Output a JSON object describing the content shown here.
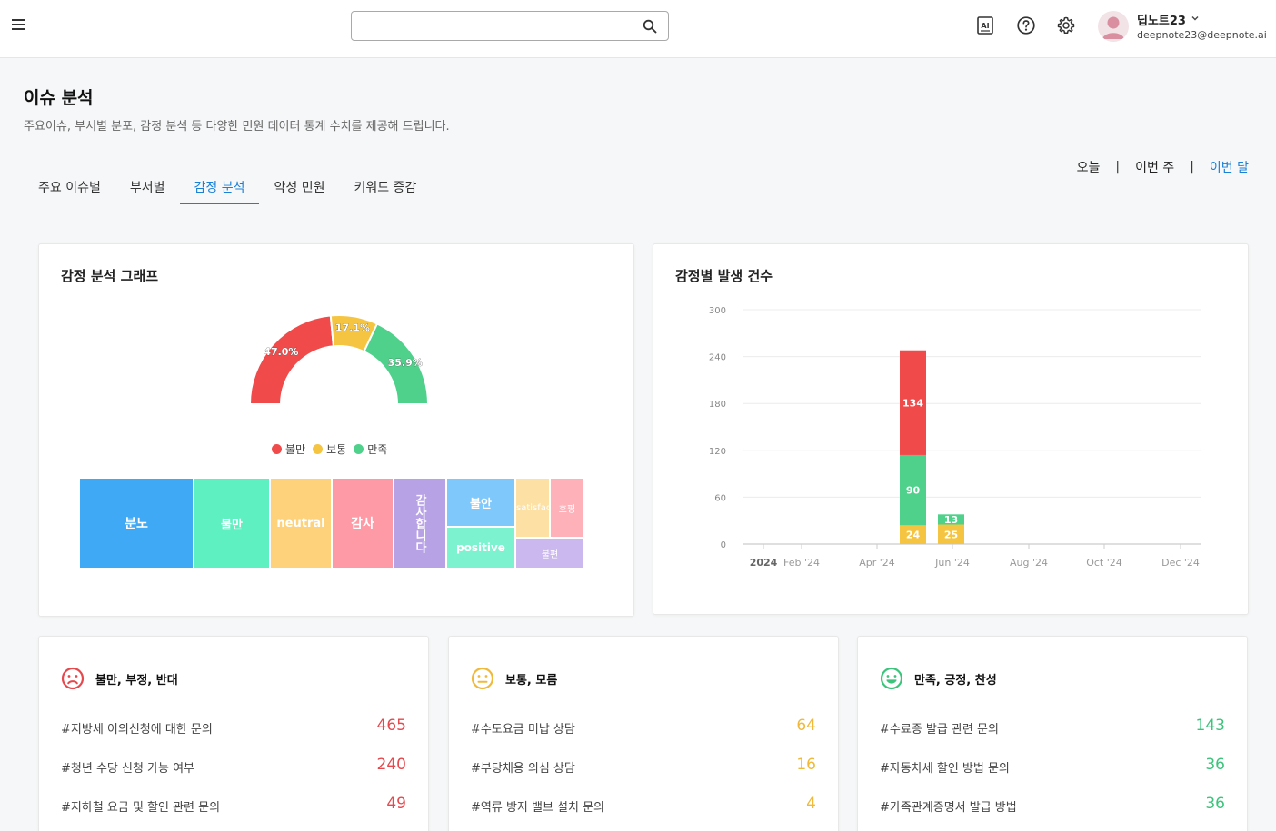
{
  "header": {
    "search": {
      "placeholder": "",
      "value": ""
    },
    "icons": [
      "menu-icon",
      "search-icon",
      "ai-icon",
      "help-icon",
      "gear-icon",
      "chevron-down-icon"
    ],
    "user": {
      "name": "딥노트23",
      "email": "deepnote23@deepnote.ai"
    }
  },
  "page": {
    "title": "이슈 분석",
    "description": "주요이슈, 부서별 분포, 감정 분석 등 다양한 민원 데이터 통계 수치를 제공해 드립니다."
  },
  "tabs": [
    {
      "label": "주요 이슈별",
      "active": false
    },
    {
      "label": "부서별",
      "active": false
    },
    {
      "label": "감정 분석",
      "active": true
    },
    {
      "label": "악성 민원",
      "active": false
    },
    {
      "label": "키워드 증감",
      "active": false
    }
  ],
  "period": [
    {
      "label": "오늘",
      "active": false
    },
    {
      "label": "이번 주",
      "active": false
    },
    {
      "label": "이번 달",
      "active": true
    }
  ],
  "sentiment_card": {
    "title": "감정 분석 그래프"
  },
  "timeline_card": {
    "title": "감정별 발생 건수"
  },
  "colors": {
    "negative": "#f04a4a",
    "neutral": "#f5c542",
    "positive": "#4fd18b",
    "accent": "#1a7fd6"
  },
  "chart_data": [
    {
      "type": "pie",
      "variant": "half-donut",
      "labels": [
        "불만",
        "보통",
        "만족"
      ],
      "values": [
        47.0,
        17.1,
        35.9
      ],
      "value_labels": [
        "47.0%",
        "17.1%",
        "35.9%"
      ],
      "colors": [
        "#f04a4a",
        "#f5c542",
        "#4fd18b"
      ],
      "legend": [
        "불만",
        "보통",
        "만족"
      ],
      "legend_placement": "bottom"
    },
    {
      "type": "treemap",
      "labels": [
        "분노",
        "불만",
        "neutral",
        "감사",
        "감사합니다",
        "불안",
        "positive",
        "satisfaction",
        "호평",
        "불편"
      ],
      "colors": [
        "#3fa9f5",
        "#5ef0c0",
        "#fdd27a",
        "#fe9aa6",
        "#b8a2e6",
        "#7fc8fb",
        "#7df2cf",
        "#fde0a3",
        "#feb1b8",
        "#cbb8ef"
      ]
    },
    {
      "type": "bar",
      "stacked": true,
      "x_ticks": [
        "2024",
        "Feb '24",
        "Apr '24",
        "Jun '24",
        "Aug '24",
        "Oct '24",
        "Dec '24"
      ],
      "ylim": [
        0,
        300
      ],
      "y_ticks": [
        0,
        60,
        120,
        180,
        240,
        300
      ],
      "grid": true,
      "categories": [
        "May '24",
        "Jun '24"
      ],
      "series": [
        {
          "color": "#f5c542",
          "values": [
            24,
            25
          ]
        },
        {
          "color": "#4fd18b",
          "values": [
            90,
            13
          ]
        },
        {
          "color": "#f04a4a",
          "values": [
            134,
            0
          ]
        }
      ]
    }
  ],
  "issue_cards": [
    {
      "title": "불만, 부정, 반대",
      "color": "#e5484d",
      "face_icon": "sad-face-icon",
      "items": [
        {
          "label": "#지방세 이의신청에 대한 문의",
          "count": "465"
        },
        {
          "label": "#청년 수당 신청 가능 여부",
          "count": "240"
        },
        {
          "label": "#지하철 요금 및 할인 관련 문의",
          "count": "49"
        }
      ]
    },
    {
      "title": "보통, 모름",
      "color": "#f0b93a",
      "face_icon": "neutral-face-icon",
      "items": [
        {
          "label": "#수도요금 미납 상담",
          "count": "64"
        },
        {
          "label": "#부당채용 의심 상담",
          "count": "16"
        },
        {
          "label": "#역류 방지 밸브 설치 문의",
          "count": "4"
        }
      ]
    },
    {
      "title": "만족, 긍정, 찬성",
      "color": "#3cc47c",
      "face_icon": "happy-face-icon",
      "items": [
        {
          "label": "#수료증 발급 관련 문의",
          "count": "143"
        },
        {
          "label": "#자동차세 할인 방법 문의",
          "count": "36"
        },
        {
          "label": "#가족관계증명서 발급 방법",
          "count": "36"
        }
      ]
    }
  ]
}
